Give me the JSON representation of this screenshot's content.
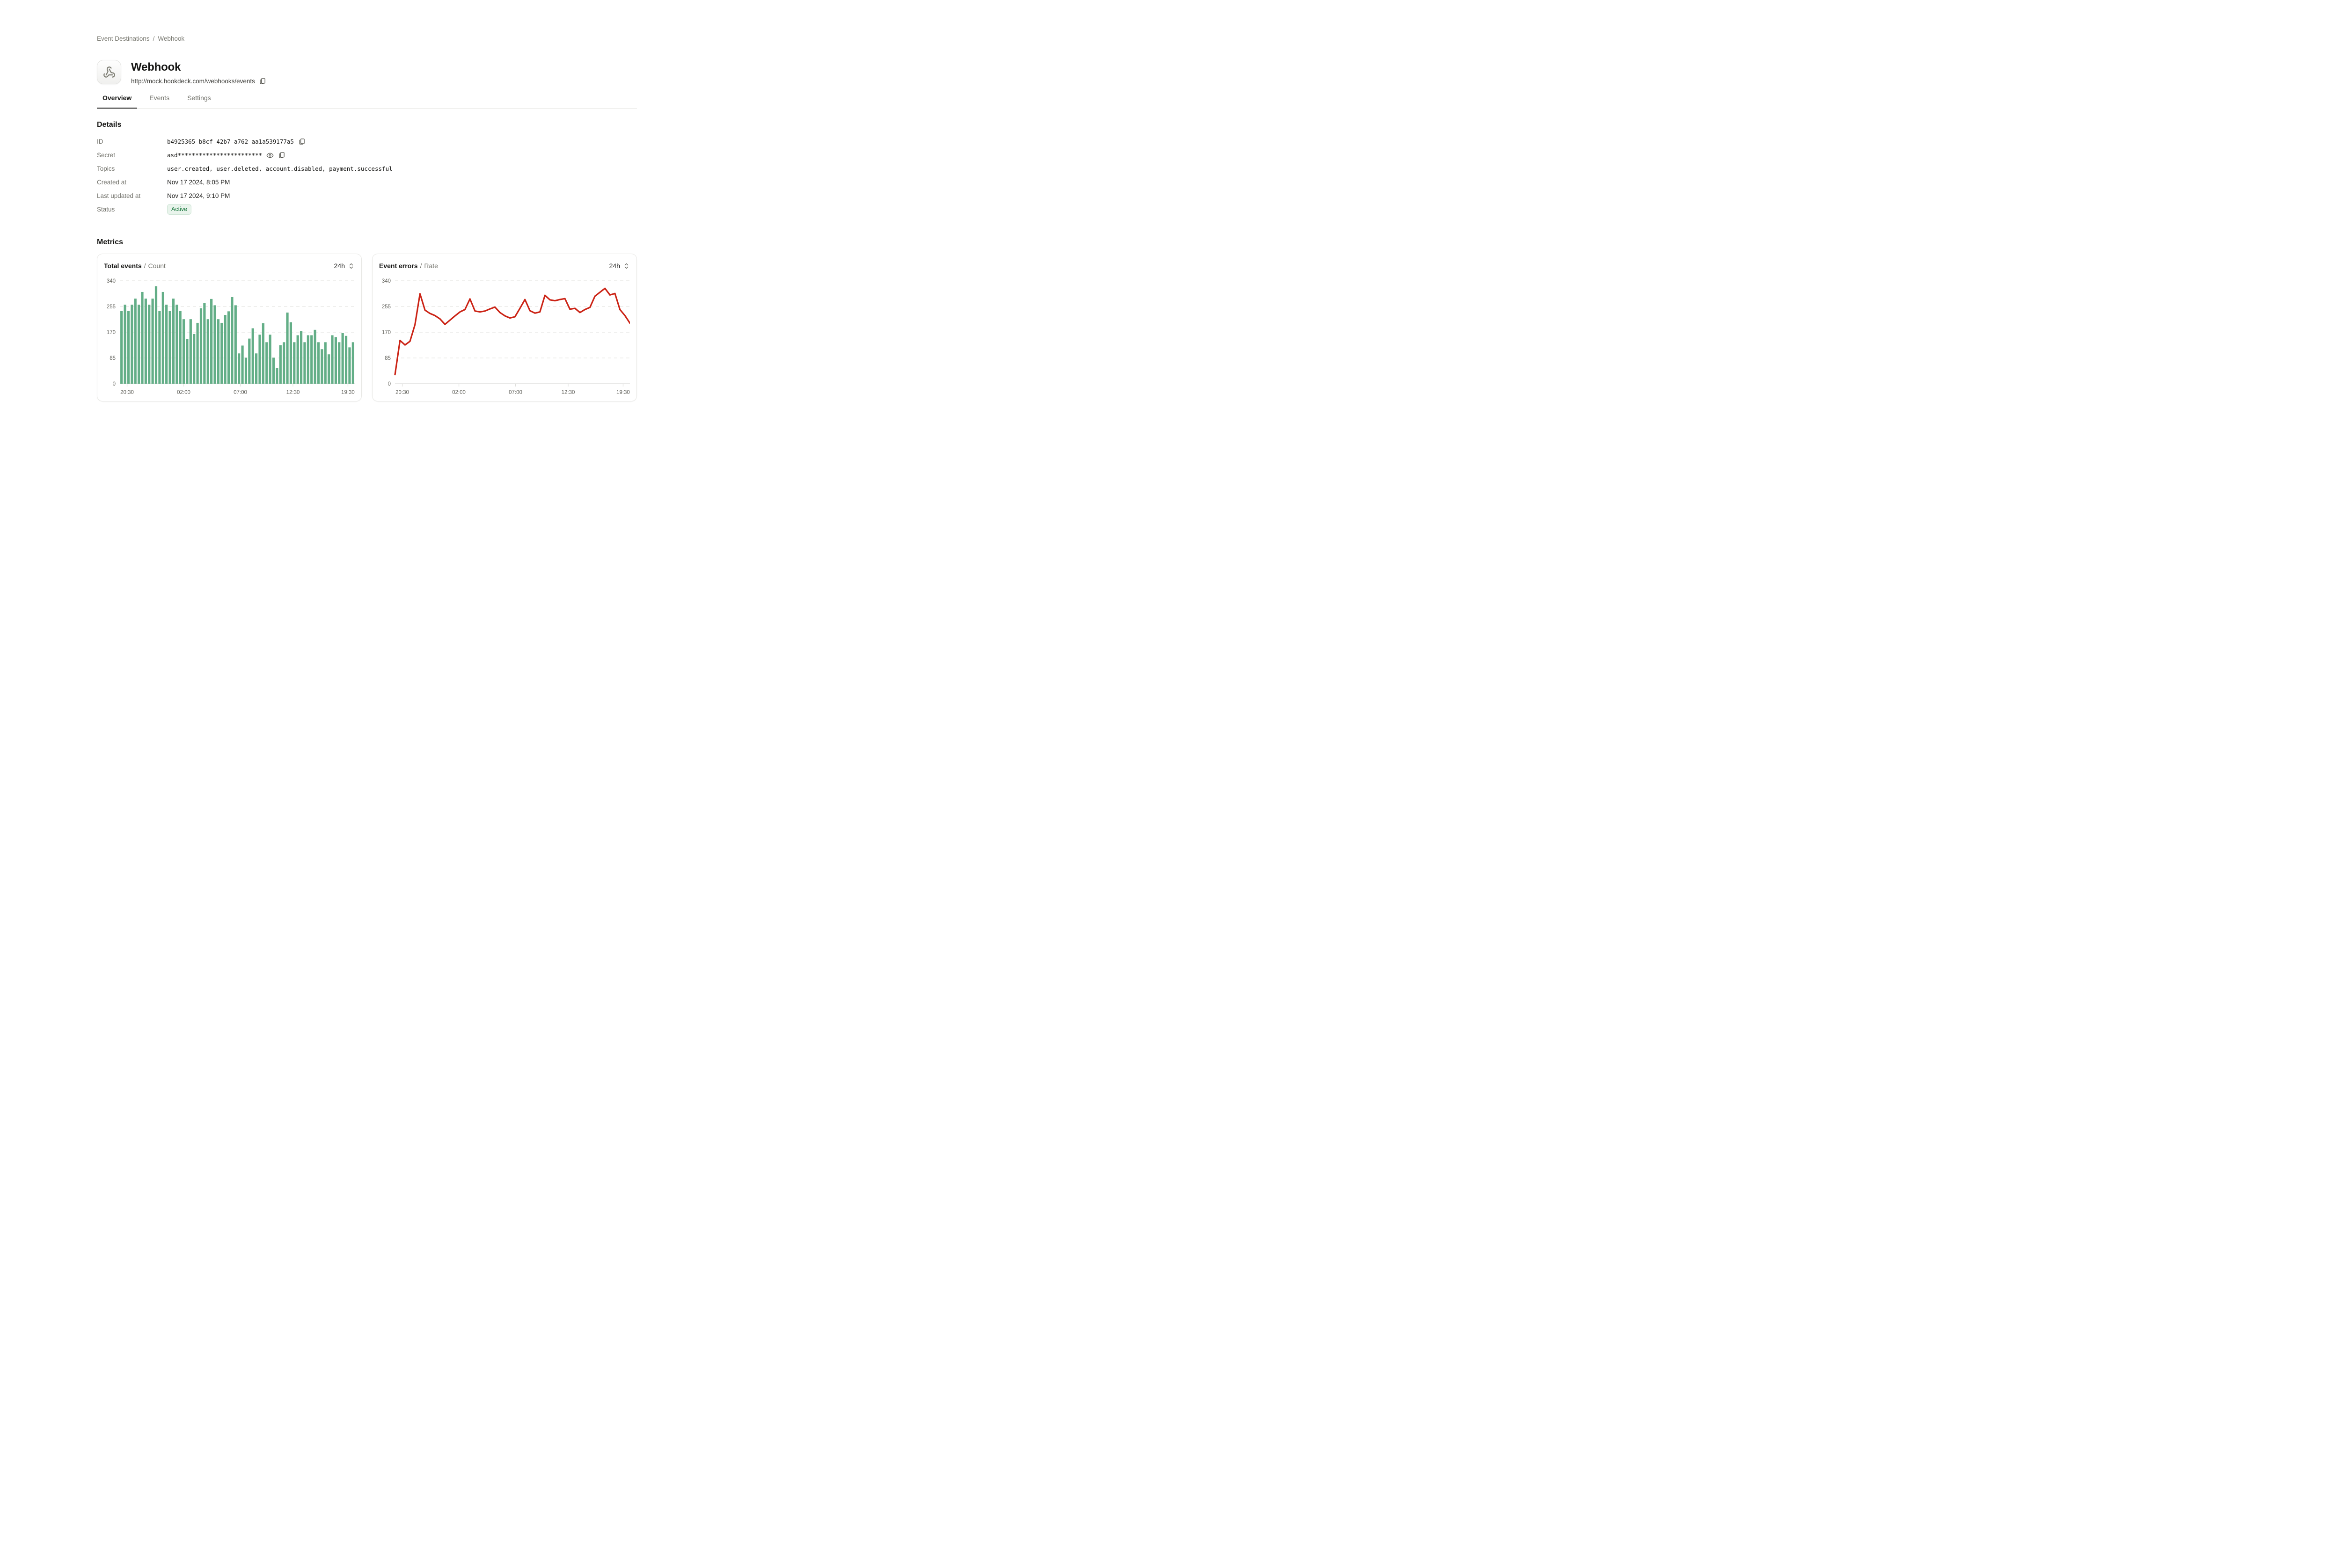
{
  "breadcrumb": {
    "items": [
      "Event Destinations",
      "Webhook"
    ],
    "separator": "/"
  },
  "header": {
    "title": "Webhook",
    "url": "http://mock.hookdeck.com/webhooks/events"
  },
  "tabs": [
    {
      "label": "Overview",
      "active": true
    },
    {
      "label": "Events",
      "active": false
    },
    {
      "label": "Settings",
      "active": false
    }
  ],
  "details": {
    "heading": "Details",
    "rows": [
      {
        "label": "ID",
        "value": "b4925365-b8cf-42b7-a762-aa1a539177a5"
      },
      {
        "label": "Secret",
        "value": "asd************************"
      },
      {
        "label": "Topics",
        "value": "user.created, user.deleted, account.disabled, payment.successful"
      },
      {
        "label": "Created at",
        "value": "Nov 17 2024, 8:05 PM"
      },
      {
        "label": "Last updated at",
        "value": "Nov 17 2024, 9:10 PM"
      },
      {
        "label": "Status",
        "badge": "Active"
      }
    ]
  },
  "metrics": {
    "heading": "Metrics",
    "cards": [
      {
        "range_label": "24h"
      },
      {
        "range_label": "24h"
      }
    ]
  },
  "colors": {
    "bar_green": "#63ae87",
    "line_red": "#cb2315",
    "badge_bg": "#e9f4ec",
    "badge_text": "#15753a",
    "grid": "#e5e5e2"
  },
  "chart_data": [
    {
      "type": "bar",
      "title": "Total events",
      "subtitle": "Count",
      "ylabel": "Count",
      "ylim": [
        0,
        340
      ],
      "yticks": [
        0,
        85,
        170,
        255,
        340
      ],
      "grid": "dashed-horizontal",
      "legend": "none",
      "color": "#63ae87",
      "xticks": [
        {
          "label": "20:30",
          "f": 0.031
        },
        {
          "label": "02:00",
          "f": 0.272
        },
        {
          "label": "07:00",
          "f": 0.513
        },
        {
          "label": "12:30",
          "f": 0.737
        },
        {
          "label": "19:30",
          "f": 0.971
        }
      ],
      "values": [
        240,
        261,
        240,
        261,
        281,
        261,
        303,
        281,
        261,
        281,
        322,
        240,
        303,
        261,
        240,
        281,
        261,
        240,
        213,
        148,
        213,
        164,
        201,
        249,
        266,
        213,
        280,
        259,
        213,
        201,
        227,
        239,
        286,
        259,
        100,
        126,
        86,
        149,
        183,
        100,
        162,
        200,
        137,
        162,
        86,
        52,
        127,
        137,
        235,
        203,
        137,
        160,
        174,
        137,
        160,
        160,
        178,
        137,
        114,
        137,
        97,
        160,
        154,
        137,
        167,
        158,
        120,
        137
      ]
    },
    {
      "type": "line",
      "title": "Event errors",
      "subtitle": "Rate",
      "ylabel": "Rate",
      "ylim": [
        0,
        340
      ],
      "yticks": [
        0,
        85,
        170,
        255,
        340
      ],
      "grid": "dashed-horizontal",
      "legend": "none",
      "color": "#cb2315",
      "xticks": [
        {
          "label": "20:30",
          "f": 0.031
        },
        {
          "label": "02:00",
          "f": 0.272
        },
        {
          "label": "07:00",
          "f": 0.513
        },
        {
          "label": "12:30",
          "f": 0.737
        },
        {
          "label": "19:30",
          "f": 0.971
        }
      ],
      "values": [
        30,
        143,
        128,
        140,
        195,
        297,
        243,
        232,
        225,
        214,
        196,
        210,
        224,
        237,
        245,
        280,
        240,
        237,
        240,
        247,
        253,
        235,
        224,
        217,
        221,
        249,
        278,
        241,
        233,
        237,
        292,
        277,
        274,
        278,
        281,
        246,
        249,
        235,
        245,
        252,
        289,
        302,
        315,
        293,
        298,
        245,
        225,
        200
      ]
    }
  ]
}
